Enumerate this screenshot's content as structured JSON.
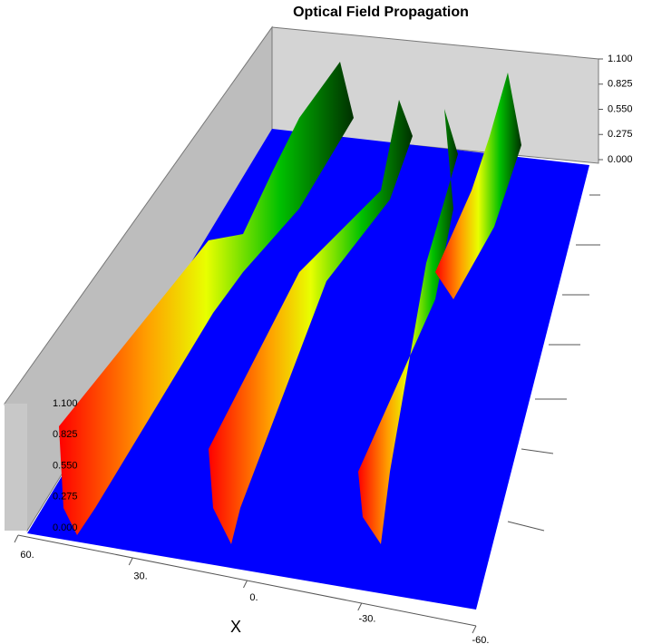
{
  "chart_data": {
    "type": "surface3d",
    "title": "Optical Field Propagation",
    "xlabel": "X",
    "xlim": [
      60,
      -60
    ],
    "xticks": [
      {
        "value": 60,
        "label": "60."
      },
      {
        "value": 30,
        "label": "30."
      },
      {
        "value": 0,
        "label": "0."
      },
      {
        "value": -30,
        "label": "-30."
      },
      {
        "value": -60,
        "label": "-60."
      }
    ],
    "zlim": [
      0,
      1.1
    ],
    "zticks": [
      {
        "value": 1.1,
        "label": "1.100"
      },
      {
        "value": 0.825,
        "label": "0.825"
      },
      {
        "value": 0.55,
        "label": "0.550"
      },
      {
        "value": 0.275,
        "label": "0.275"
      },
      {
        "value": 0,
        "label": "0.000"
      }
    ]
  }
}
